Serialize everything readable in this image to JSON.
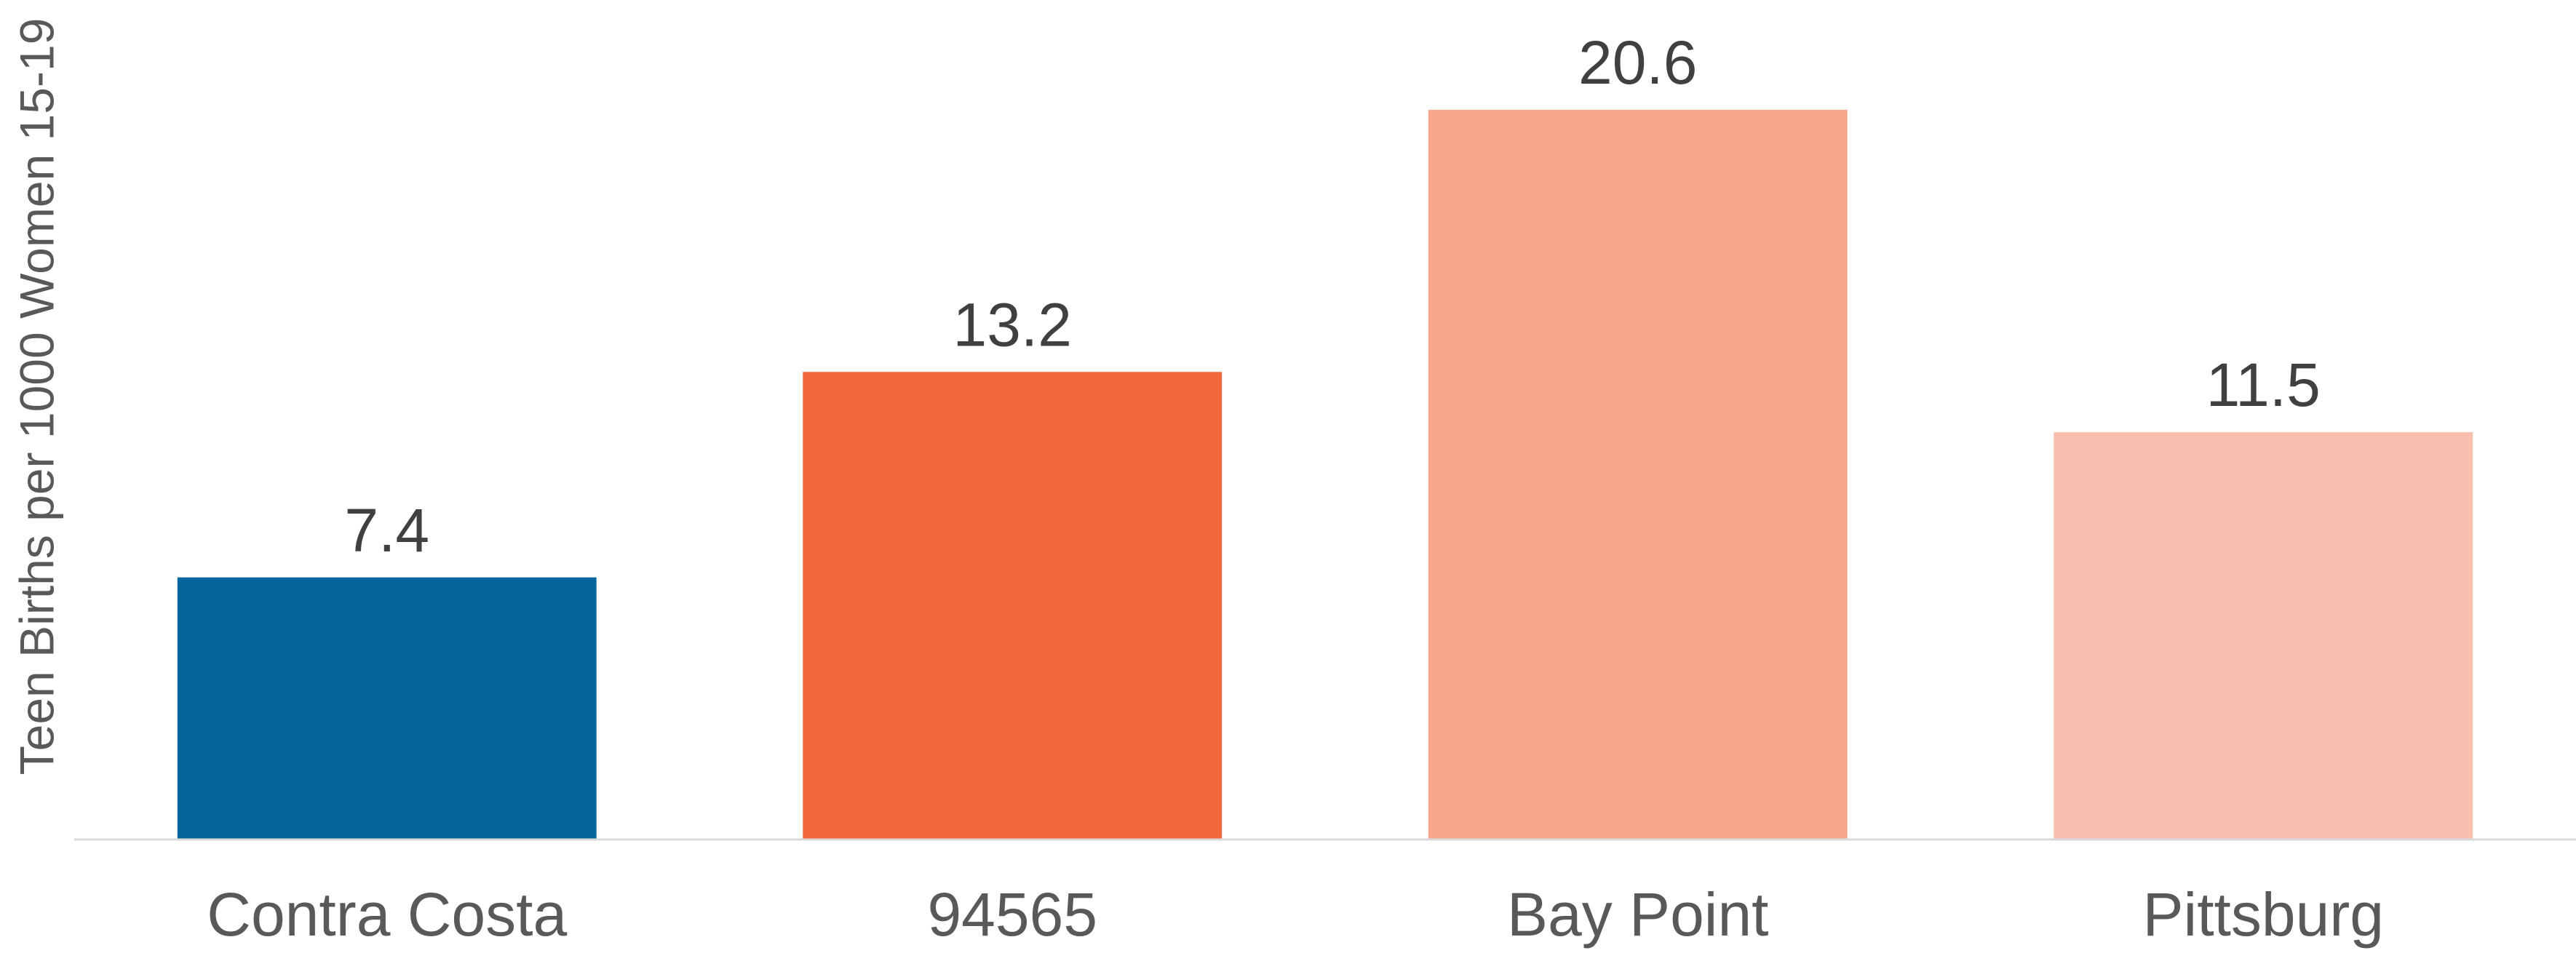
{
  "chart_data": {
    "type": "bar",
    "y_label": "Teen Births per 1000 Women 15-19",
    "categories": [
      "Contra Costa",
      "94565",
      "Bay Point",
      "Pittsburg"
    ],
    "values": [
      7.4,
      13.2,
      20.6,
      11.5
    ],
    "colors": [
      "#05659b",
      "#f1683c",
      "#f7a68b",
      "#f8c1af"
    ],
    "ylim": [
      0,
      23.7
    ]
  }
}
